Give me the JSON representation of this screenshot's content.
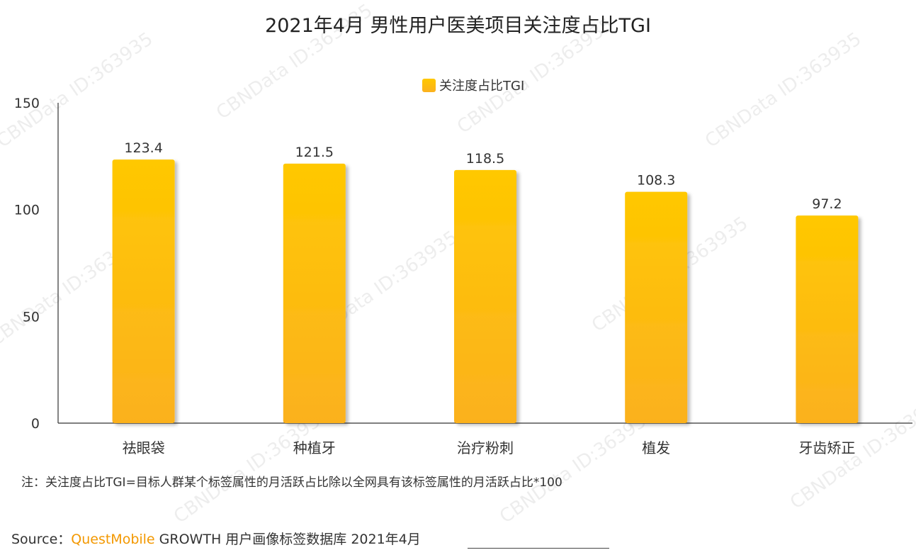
{
  "title": "2021年4月 男性用户医美项目关注度占比TGI",
  "legend_label": "关注度占比TGI",
  "note": "注：关注度占比TGI=目标人群某个标签属性的月活跃占比除以全网具有该标签属性的月活跃占比*100",
  "source": {
    "prefix": "Source：",
    "brand": "QuestMobile",
    "rest": " GROWTH 用户画像标签数据库 2021年4月"
  },
  "watermark": {
    "text_a": "ID:363935",
    "text_b": "CBNData ID:363935"
  },
  "colors": {
    "bar_top": "#ffc800",
    "bar_bottom": "#fbb11f",
    "axis": "#333333",
    "text": "#333333"
  },
  "chart_data": {
    "type": "bar",
    "categories": [
      "祛眼袋",
      "种植牙",
      "治疗粉刺",
      "植发",
      "牙齿矫正"
    ],
    "series": [
      {
        "name": "关注度占比TGI",
        "values": [
          123.4,
          121.5,
          118.5,
          108.3,
          97.2
        ]
      }
    ],
    "data_labels": [
      "123.4",
      "121.5",
      "118.5",
      "108.3",
      "97.2"
    ],
    "ylim": [
      0,
      150
    ],
    "yticks": [
      0,
      50,
      100,
      150
    ],
    "grid": false,
    "legend": "top-center",
    "xlabel": "",
    "ylabel": ""
  }
}
